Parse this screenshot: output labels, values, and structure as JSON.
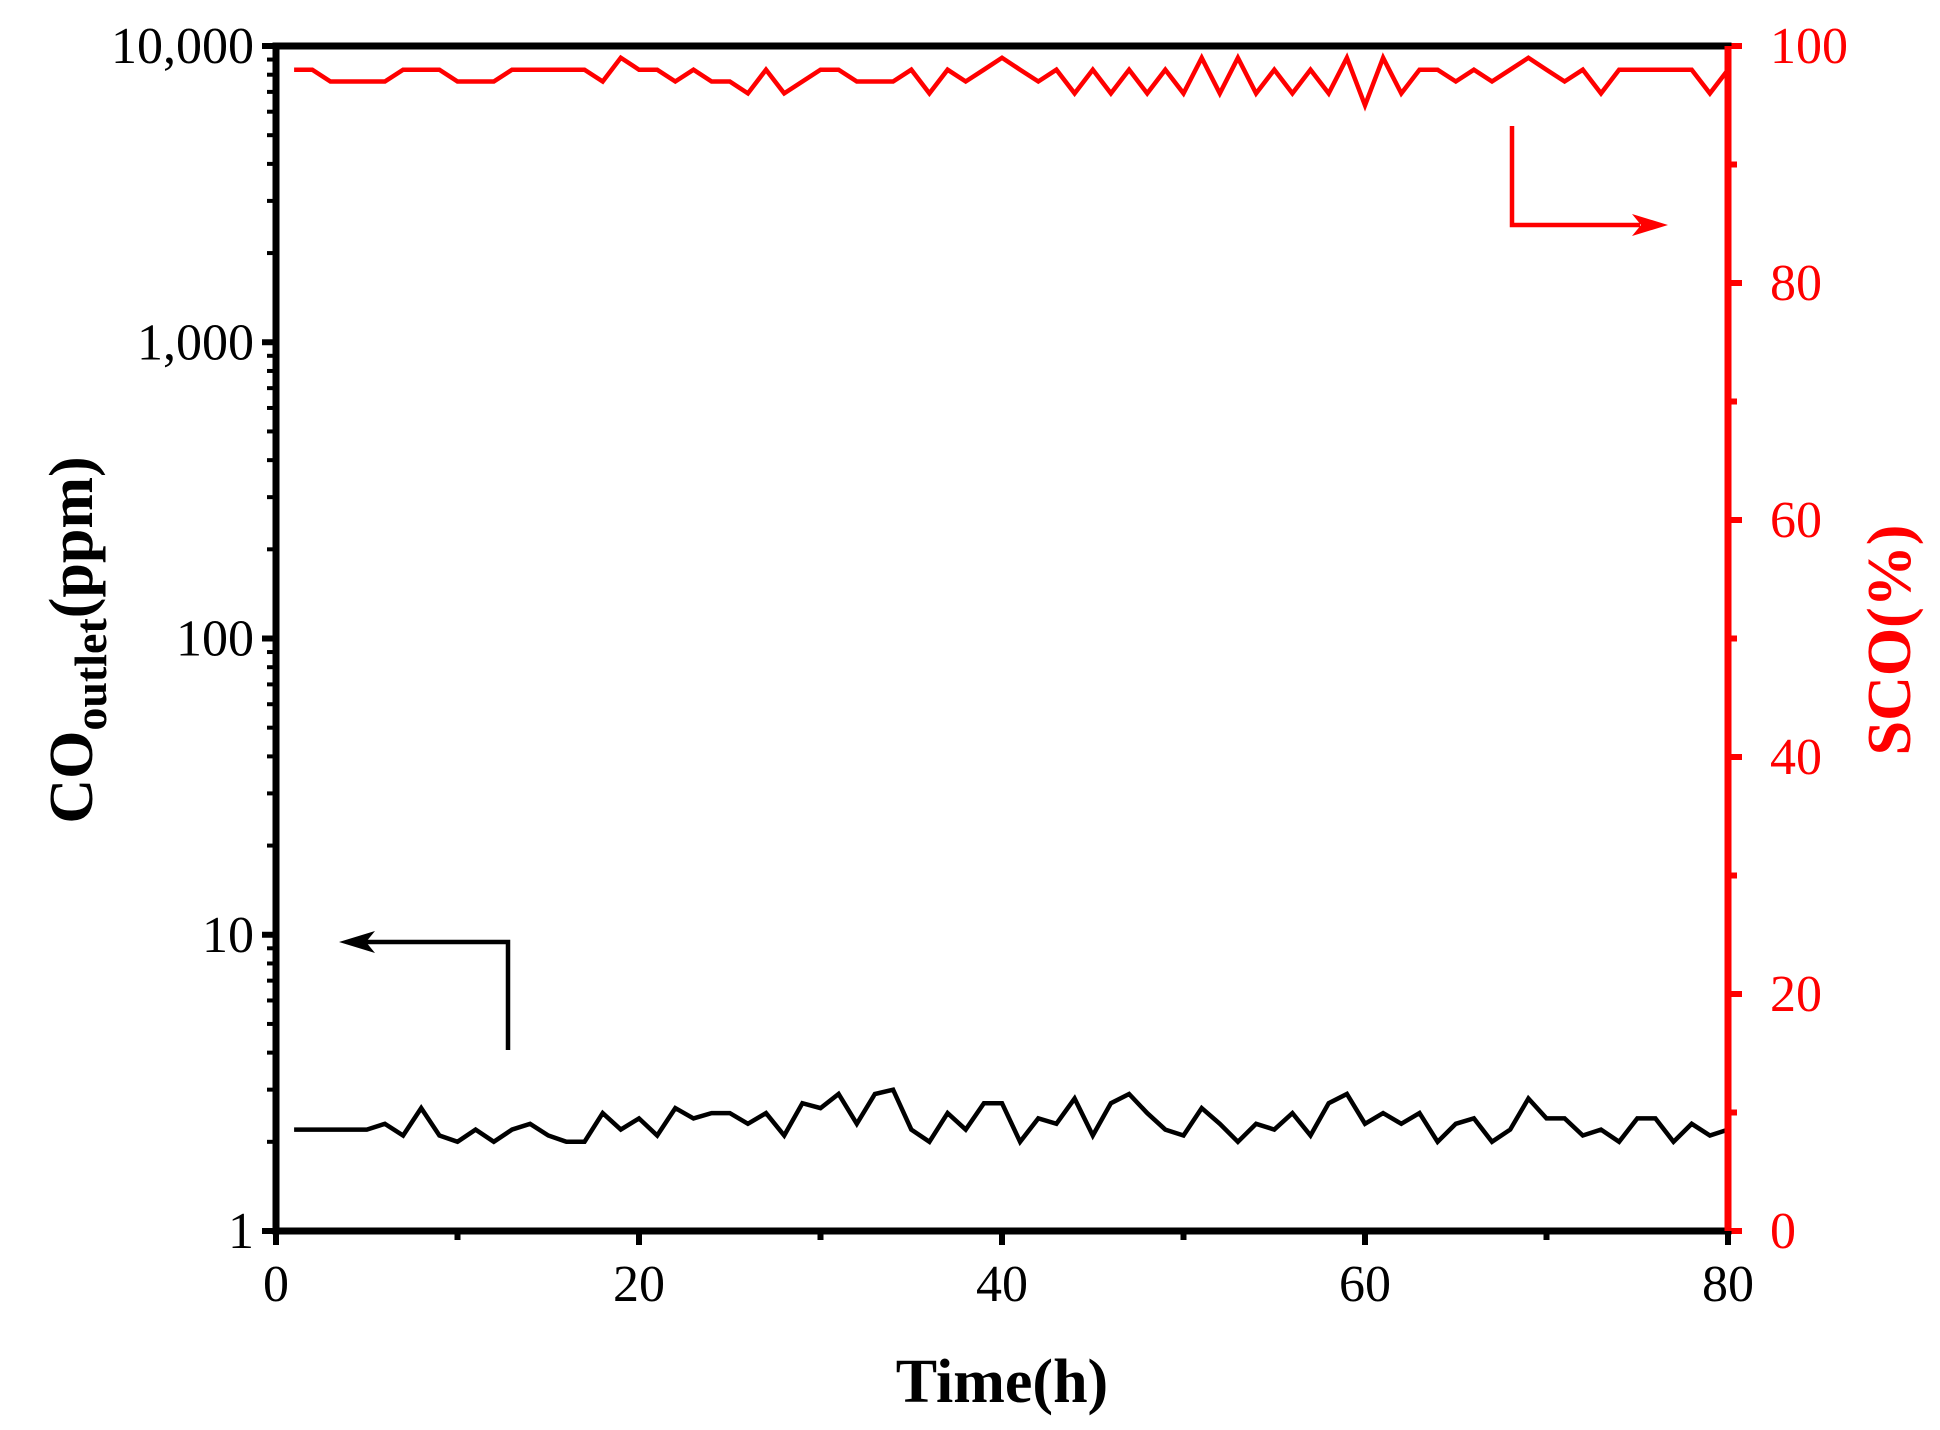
{
  "chart_data": {
    "type": "line",
    "xlabel": "Time(h)",
    "xlim": [
      0,
      80
    ],
    "x_ticks": [
      "0",
      "20",
      "40",
      "60",
      "80"
    ],
    "y_left": {
      "label_main": "CO",
      "label_sub": "outlet",
      "label_unit": "(ppm)",
      "scale": "log",
      "lim": [
        1,
        10000
      ],
      "ticks": [
        "1",
        "10",
        "100",
        "1,000",
        "10,000"
      ],
      "color": "#000000"
    },
    "y_right": {
      "label": "SCO(%)",
      "scale": "linear",
      "lim": [
        0,
        100
      ],
      "ticks": [
        "0",
        "20",
        "40",
        "60",
        "80",
        "100"
      ],
      "color": "#ff0000"
    },
    "series": [
      {
        "axis": "left",
        "color": "#000000",
        "x": [
          1,
          2,
          3,
          4,
          5,
          6,
          7,
          8,
          9,
          10,
          11,
          12,
          13,
          14,
          15,
          16,
          17,
          18,
          19,
          20,
          21,
          22,
          23,
          24,
          25,
          26,
          27,
          28,
          29,
          30,
          31,
          32,
          33,
          34,
          35,
          36,
          37,
          38,
          39,
          40,
          41,
          42,
          43,
          44,
          45,
          46,
          47,
          48,
          49,
          50,
          51,
          52,
          53,
          54,
          55,
          56,
          57,
          58,
          59,
          60,
          61,
          62,
          63,
          64,
          65,
          66,
          67,
          68,
          69,
          70,
          71,
          72,
          73,
          74,
          75,
          76,
          77,
          78,
          79,
          80
        ],
        "values": [
          2.2,
          2.2,
          2.2,
          2.2,
          2.2,
          2.3,
          2.1,
          2.6,
          2.1,
          2.0,
          2.2,
          2.0,
          2.2,
          2.3,
          2.1,
          2.0,
          2.0,
          2.5,
          2.2,
          2.4,
          2.1,
          2.6,
          2.4,
          2.5,
          2.5,
          2.3,
          2.5,
          2.1,
          2.7,
          2.6,
          2.9,
          2.3,
          2.9,
          3.0,
          2.2,
          2.0,
          2.5,
          2.2,
          2.7,
          2.7,
          2.0,
          2.4,
          2.3,
          2.8,
          2.1,
          2.7,
          2.9,
          2.5,
          2.2,
          2.1,
          2.6,
          2.3,
          2.0,
          2.3,
          2.2,
          2.5,
          2.1,
          2.7,
          2.9,
          2.3,
          2.5,
          2.3,
          2.5,
          2.0,
          2.3,
          2.4,
          2.0,
          2.2,
          2.8,
          2.4,
          2.4,
          2.1,
          2.2,
          2.0,
          2.4,
          2.4,
          2.0,
          2.3,
          2.1,
          2.2
        ]
      },
      {
        "axis": "right",
        "color": "#ff0000",
        "x": [
          1,
          2,
          3,
          4,
          5,
          6,
          7,
          8,
          9,
          10,
          11,
          12,
          13,
          14,
          15,
          16,
          17,
          18,
          19,
          20,
          21,
          22,
          23,
          24,
          25,
          26,
          27,
          28,
          29,
          30,
          31,
          32,
          33,
          34,
          35,
          36,
          37,
          38,
          39,
          40,
          41,
          42,
          43,
          44,
          45,
          46,
          47,
          48,
          49,
          50,
          51,
          52,
          53,
          54,
          55,
          56,
          57,
          58,
          59,
          60,
          61,
          62,
          63,
          64,
          65,
          66,
          67,
          68,
          69,
          70,
          71,
          72,
          73,
          74,
          75,
          76,
          77,
          78,
          79,
          80
        ],
        "values": [
          98.0,
          98.0,
          97.0,
          97.0,
          97.0,
          97.0,
          98.0,
          98.0,
          98.0,
          97.0,
          97.0,
          97.0,
          98.0,
          98.0,
          98.0,
          98.0,
          98.0,
          97.0,
          99.0,
          98.0,
          98.0,
          97.0,
          98.0,
          97.0,
          97.0,
          96.0,
          98.0,
          96.0,
          97.0,
          98.0,
          98.0,
          97.0,
          97.0,
          97.0,
          98.0,
          96.0,
          98.0,
          97.0,
          98.0,
          99.0,
          98.0,
          97.0,
          98.0,
          96.0,
          98.0,
          96.0,
          98.0,
          96.0,
          98.0,
          96.0,
          99.0,
          96.0,
          99.0,
          96.0,
          98.0,
          96.0,
          98.0,
          96.0,
          99.0,
          95.0,
          99.0,
          96.0,
          98.0,
          98.0,
          97.0,
          98.0,
          97.0,
          98.0,
          99.0,
          98.0,
          97.0,
          98.0,
          96.0,
          98.0,
          98.0,
          98.0,
          98.0,
          98.0,
          96.0,
          98.0
        ]
      }
    ],
    "annotations": [
      {
        "type": "arrow",
        "direction": "left",
        "target_axis": "left",
        "color": "#000000"
      },
      {
        "type": "arrow",
        "direction": "right",
        "target_axis": "right",
        "color": "#ff0000"
      }
    ],
    "grid": false,
    "legend": "none"
  }
}
